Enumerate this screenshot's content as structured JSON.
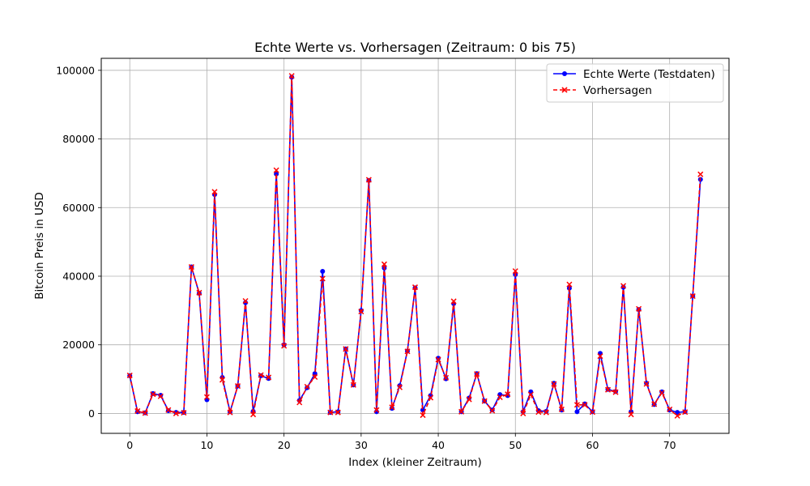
{
  "chart_data": {
    "type": "line",
    "title": "Echte Werte vs. Vorhersagen (Zeitraum: 0 bis 75)",
    "xlabel": "Index (kleiner Zeitraum)",
    "ylabel": "Bitcoin Preis in USD",
    "xlim": [
      -3.7,
      77.7
    ],
    "ylim": [
      -5800,
      103500
    ],
    "xticks": [
      0,
      10,
      20,
      30,
      40,
      50,
      60,
      70
    ],
    "yticks": [
      0,
      20000,
      40000,
      60000,
      80000,
      100000
    ],
    "grid": true,
    "legend_position": "top-right",
    "x": [
      0,
      1,
      2,
      3,
      4,
      5,
      6,
      7,
      8,
      9,
      10,
      11,
      12,
      13,
      14,
      15,
      16,
      17,
      18,
      19,
      20,
      21,
      22,
      23,
      24,
      25,
      26,
      27,
      28,
      29,
      30,
      31,
      32,
      33,
      34,
      35,
      36,
      37,
      38,
      39,
      40,
      41,
      42,
      43,
      44,
      45,
      46,
      47,
      48,
      49,
      50,
      51,
      52,
      53,
      54,
      55,
      56,
      57,
      58,
      59,
      60,
      61,
      62,
      63,
      64,
      65,
      66,
      67,
      68,
      69,
      70,
      71,
      72,
      73,
      74
    ],
    "series": [
      {
        "name": "Echte Werte (Testdaten)",
        "color": "#0000ff",
        "style": "solid",
        "marker": "circle",
        "values": [
          11000,
          500,
          200,
          5800,
          5300,
          800,
          300,
          300,
          42700,
          35000,
          4000,
          63800,
          10500,
          500,
          8000,
          32300,
          600,
          11000,
          10200,
          69800,
          20000,
          98000,
          3800,
          7500,
          11600,
          41400,
          300,
          500,
          18800,
          8300,
          30000,
          67900,
          500,
          42400,
          1500,
          8100,
          18200,
          36600,
          1000,
          5200,
          16100,
          10100,
          32000,
          500,
          4500,
          11600,
          3600,
          1000,
          5500,
          5200,
          40500,
          500,
          6300,
          800,
          600,
          8800,
          1000,
          36500,
          500,
          2800,
          500,
          17500,
          7000,
          6400,
          36800,
          500,
          30300,
          8800,
          2600,
          6300,
          1000,
          300,
          500,
          34200,
          68200
        ]
      },
      {
        "name": "Vorhersagen",
        "color": "#ff0000",
        "style": "dashed",
        "marker": "x",
        "values": [
          11100,
          700,
          100,
          5600,
          5000,
          1000,
          0,
          200,
          42700,
          35200,
          4800,
          64600,
          9800,
          300,
          8000,
          32800,
          -300,
          11200,
          10500,
          70900,
          19700,
          98400,
          3200,
          7800,
          10600,
          39300,
          300,
          300,
          18800,
          8300,
          29700,
          68100,
          1000,
          43500,
          1800,
          7600,
          18100,
          36800,
          -500,
          4600,
          15700,
          10400,
          32700,
          500,
          4100,
          11500,
          3600,
          800,
          4700,
          5600,
          41500,
          0,
          5500,
          400,
          300,
          8600,
          1200,
          37600,
          2500,
          2500,
          400,
          16700,
          6900,
          6200,
          37200,
          -300,
          30500,
          8600,
          2700,
          6000,
          1200,
          -700,
          400,
          34200,
          69700
        ]
      }
    ]
  }
}
